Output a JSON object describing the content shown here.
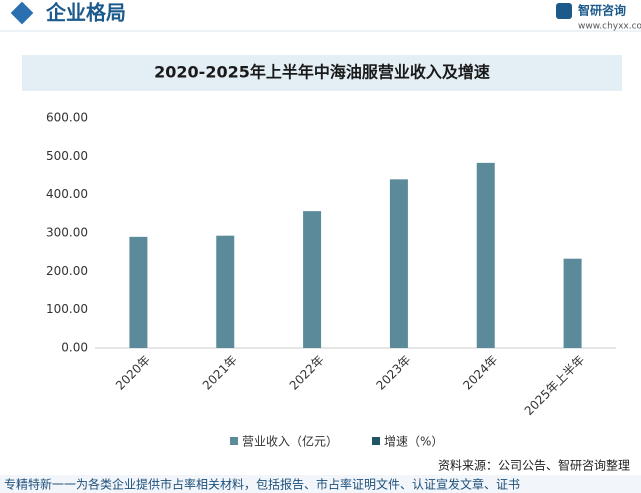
{
  "header": {
    "title": "企业格局",
    "logo": "智研咨询",
    "url": "www.chyxx.com"
  },
  "chart_data": {
    "type": "bar",
    "title": "2020-2025年上半年中海油服营业收入及增速",
    "categories": [
      "2020年",
      "2021年",
      "2022年",
      "2023年",
      "2024年",
      "2025年上半年"
    ],
    "series": [
      {
        "name": "营业收入（亿元）",
        "color": "#5b8a9b",
        "values": [
          290,
          293,
          357,
          440,
          483,
          233
        ]
      },
      {
        "name": "增速（%）",
        "color": "#1f5566",
        "values": [
          null,
          null,
          null,
          null,
          null,
          null
        ]
      }
    ],
    "ylim": [
      0,
      600
    ],
    "yticks": [
      {
        "value": 0,
        "label": "0.00"
      },
      {
        "value": 100,
        "label": "100.00"
      },
      {
        "value": 200,
        "label": "200.00"
      },
      {
        "value": 300,
        "label": "300.00"
      },
      {
        "value": 400,
        "label": "400.00"
      },
      {
        "value": 500,
        "label": "500.00"
      },
      {
        "value": 600,
        "label": "600.00"
      }
    ],
    "grid": false,
    "source": "资料来源：公司公告、智研咨询整理"
  },
  "footer": {
    "text": "专精特新一一为各类企业提供市占率相关材料，包括报告、市占率证明文件、认证宣发文章、证书"
  }
}
